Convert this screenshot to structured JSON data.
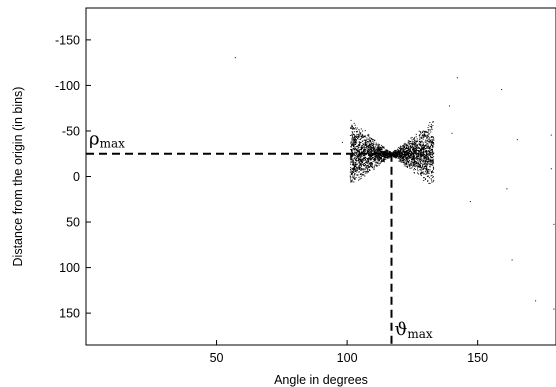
{
  "chart_data": {
    "type": "scatter",
    "title": "",
    "xlabel": "Angle in degrees",
    "ylabel": "Distance from the origin (in bins)",
    "xlim": [
      0,
      180
    ],
    "ylim": [
      -185,
      185
    ],
    "y_inverted": true,
    "xticks": [
      50,
      100,
      150
    ],
    "yticks": [
      -150,
      -100,
      -50,
      0,
      50,
      100,
      150
    ],
    "grid": false,
    "legend": "none",
    "colors": {
      "points": "#000000",
      "axes": "#000000",
      "guides": "#000000"
    },
    "peak": {
      "theta": 117,
      "rho": -25,
      "theta_label": "ϑ",
      "theta_sub": "max",
      "rho_label": "ρ",
      "rho_sub": "max"
    },
    "cluster": {
      "center": [
        117,
        -25
      ],
      "left_theta_range": [
        101,
        117
      ],
      "right_theta_range": [
        117,
        133
      ],
      "max_half_spread": 38,
      "density": "dense"
    },
    "scattered_points": [
      [
        57,
        -131
      ],
      [
        98,
        -38
      ],
      [
        140,
        -48
      ],
      [
        142,
        -109
      ],
      [
        159,
        -96
      ],
      [
        163,
        91
      ],
      [
        165,
        -41
      ],
      [
        178,
        -46
      ],
      [
        178,
        -9
      ],
      [
        172,
        136
      ],
      [
        179,
        52
      ],
      [
        179,
        145
      ],
      [
        161,
        13
      ],
      [
        147,
        27
      ],
      [
        139,
        -78
      ]
    ]
  }
}
